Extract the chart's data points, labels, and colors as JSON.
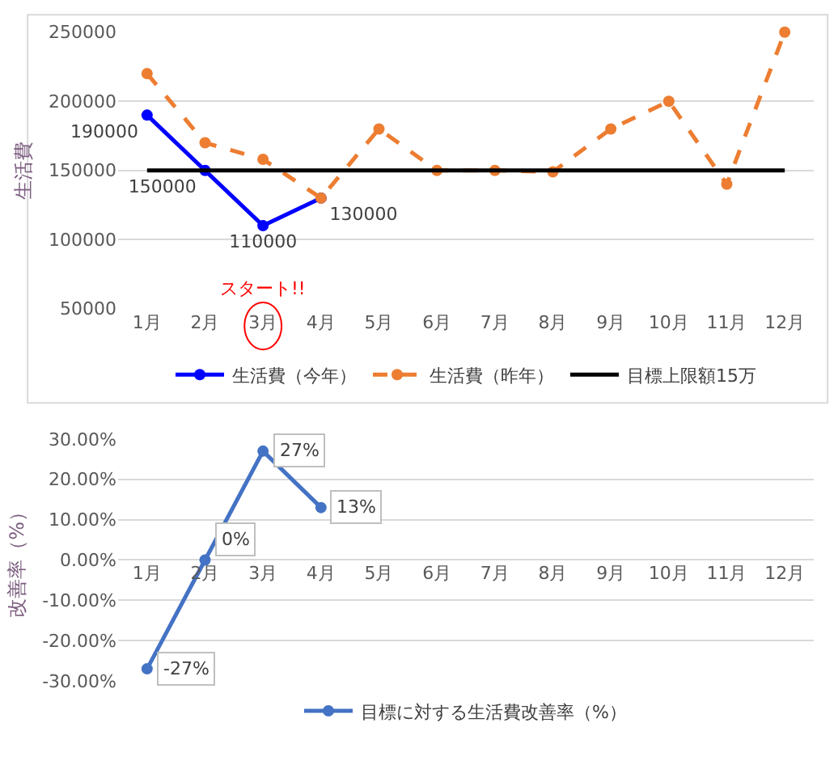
{
  "chart_data": [
    {
      "type": "line",
      "ylabel": "生活費",
      "categories": [
        "1月",
        "2月",
        "3月",
        "4月",
        "5月",
        "6月",
        "7月",
        "8月",
        "9月",
        "10月",
        "11月",
        "12月"
      ],
      "series": [
        {
          "name": "生活費（今年）",
          "color": "#0000ff",
          "values": [
            190000,
            150000,
            110000,
            130000,
            null,
            null,
            null,
            null,
            null,
            null,
            null,
            null
          ],
          "value_labels": [
            "190000",
            "150000",
            "110000",
            "130000",
            null,
            null,
            null,
            null,
            null,
            null,
            null,
            null
          ],
          "marker": "circle",
          "line_style": "solid"
        },
        {
          "name": "生活費（昨年）",
          "color": "#ed7d31",
          "values": [
            220000,
            170000,
            158000,
            130000,
            180000,
            150000,
            150000,
            149000,
            180000,
            200000,
            140000,
            250000
          ],
          "marker": "circle",
          "line_style": "dashed"
        },
        {
          "name": "目標上限額15万",
          "color": "#000000",
          "values": [
            150000,
            150000,
            150000,
            150000,
            150000,
            150000,
            150000,
            150000,
            150000,
            150000,
            150000,
            150000
          ],
          "marker": "none",
          "line_style": "solid"
        }
      ],
      "ylim": [
        50000,
        250000
      ],
      "yticks": [
        50000,
        100000,
        150000,
        200000,
        250000
      ],
      "grid": "y",
      "legend": "bottom",
      "annotations": [
        "スタート!!"
      ]
    },
    {
      "type": "line",
      "ylabel": "改善率（%）",
      "categories": [
        "1月",
        "2月",
        "3月",
        "4月",
        "5月",
        "6月",
        "7月",
        "8月",
        "9月",
        "10月",
        "11月",
        "12月"
      ],
      "series": [
        {
          "name": "目標に対する生活費改善率（%）",
          "color": "#4472c4",
          "values": [
            -27,
            0,
            27,
            13,
            null,
            null,
            null,
            null,
            null,
            null,
            null,
            null
          ],
          "value_labels": [
            "-27%",
            "0%",
            "27%",
            "13%",
            null,
            null,
            null,
            null,
            null,
            null,
            null,
            null
          ],
          "marker": "circle",
          "line_style": "solid"
        }
      ],
      "ylim": [
        -30,
        30
      ],
      "yticks": [
        {
          "value": -30,
          "label": "-30.00%"
        },
        {
          "value": -20,
          "label": "-20.00%"
        },
        {
          "value": -10,
          "label": "-10.00%"
        },
        {
          "value": 0,
          "label": "0.00%"
        },
        {
          "value": 10,
          "label": "10.00%"
        },
        {
          "value": 20,
          "label": "20.00%"
        },
        {
          "value": 30,
          "label": "30.00%"
        }
      ],
      "grid": "y",
      "legend": "bottom"
    }
  ]
}
